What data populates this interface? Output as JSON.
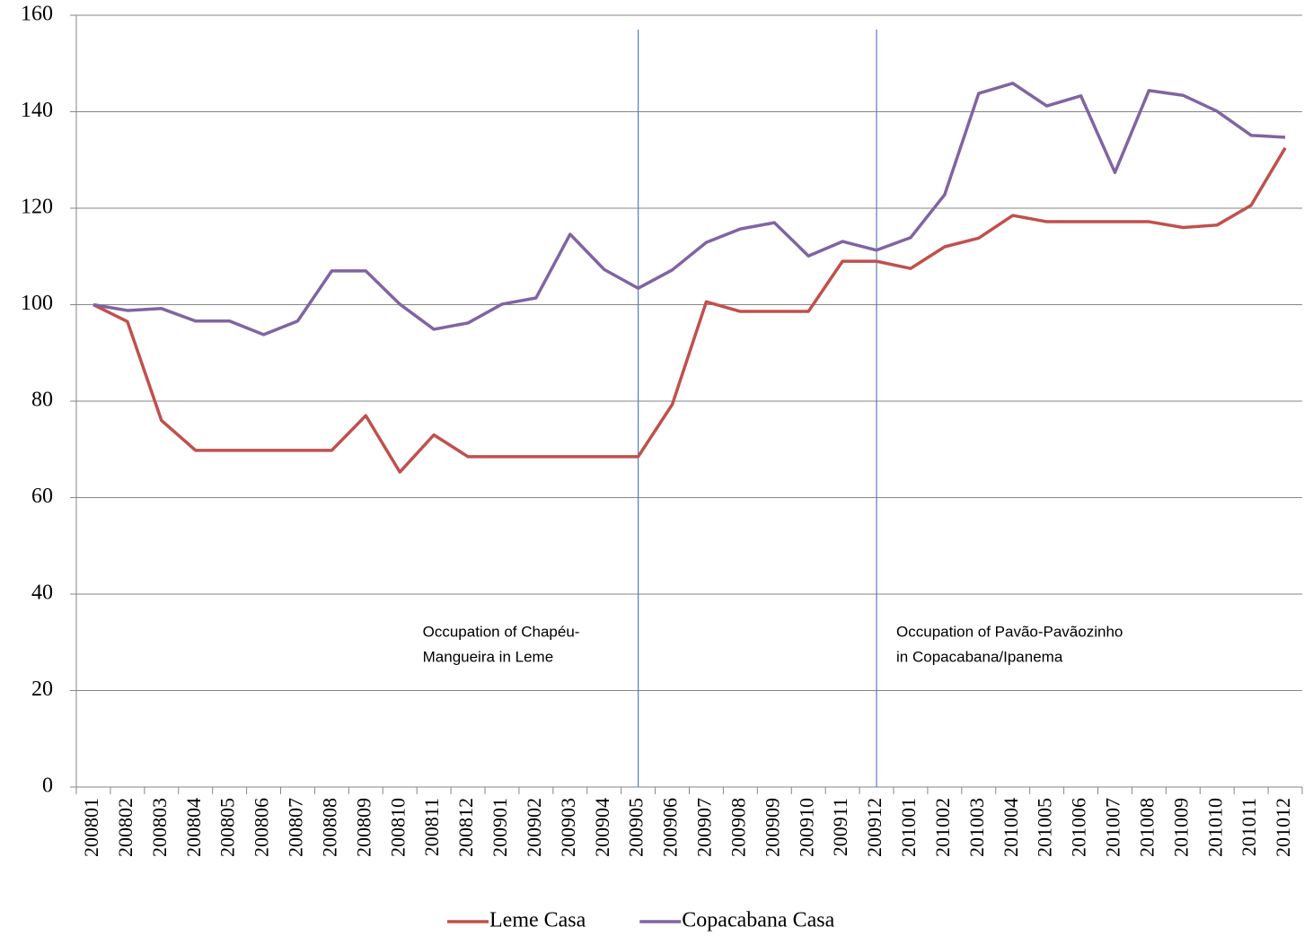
{
  "chart_data": {
    "type": "line",
    "categories": [
      "200801",
      "200802",
      "200803",
      "200804",
      "200805",
      "200806",
      "200807",
      "200808",
      "200809",
      "200810",
      "200811",
      "200812",
      "200901",
      "200902",
      "200903",
      "200904",
      "200905",
      "200906",
      "200907",
      "200908",
      "200909",
      "200910",
      "200911",
      "200912",
      "201001",
      "201002",
      "201003",
      "201004",
      "201005",
      "201006",
      "201007",
      "201008",
      "201009",
      "201010",
      "201011",
      "201012"
    ],
    "series": [
      {
        "name": "Leme Casa",
        "color": "#c0504d",
        "values": [
          100,
          96.5,
          76,
          69.8,
          69.8,
          69.8,
          69.8,
          69.8,
          77,
          65.3,
          73,
          68.5,
          68.5,
          68.5,
          68.5,
          68.5,
          68.5,
          79.3,
          100.6,
          98.6,
          98.6,
          98.6,
          109,
          109,
          107.5,
          112,
          113.8,
          118.5,
          117.2,
          117.2,
          117.2,
          117.2,
          116,
          116.5,
          120.6,
          132.5
        ]
      },
      {
        "name": "Copacabana Casa",
        "color": "#8064a2",
        "values": [
          100,
          98.8,
          99.2,
          96.6,
          96.6,
          93.8,
          96.6,
          107,
          107,
          100.1,
          94.9,
          96.2,
          100.1,
          101.4,
          114.6,
          107.3,
          103.4,
          107.2,
          112.9,
          115.7,
          117,
          110.1,
          113.1,
          111.3,
          113.9,
          122.8,
          143.8,
          145.9,
          141.2,
          143.3,
          127.4,
          144.4,
          143.4,
          140.1,
          135.1,
          134.7
        ]
      }
    ],
    "ylim": [
      0,
      160
    ],
    "yticks": [
      0,
      20,
      40,
      60,
      80,
      100,
      120,
      140,
      160
    ],
    "grid": true,
    "markers": [
      {
        "at": "200905",
        "color": "#4f81bd",
        "text": [
          "Occupation of Chapéu-",
          "Mangueira in Leme"
        ]
      },
      {
        "at": "200912",
        "color": "#4f81bd",
        "text": [
          "Occupation of Pavão-Pavãozinho",
          "in Copacabana/Ipanema"
        ]
      }
    ],
    "legend": "bottom"
  }
}
